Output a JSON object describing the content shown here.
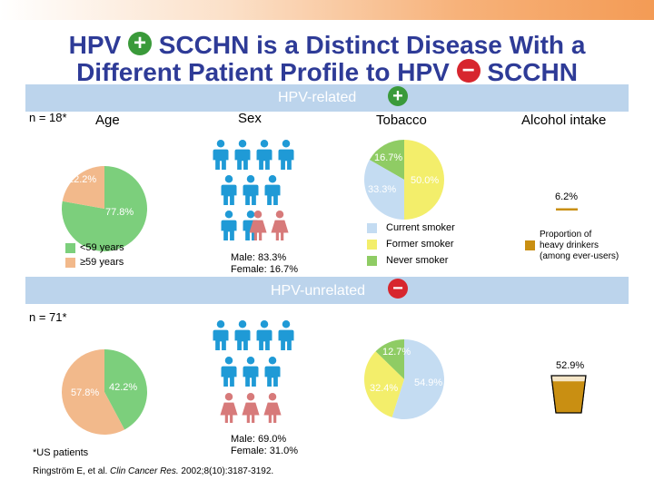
{
  "colors": {
    "title": "#2e3b97",
    "band": "#bcd4ec",
    "male": "#1f9ad6",
    "female": "#d77a7a",
    "under59": "#7ccf7c",
    "over59": "#f2b98b",
    "current_smoker": "#c4dcf2",
    "former_smoker": "#f3ee6b",
    "never_smoker": "#8fcc64",
    "drinkers": "#c98f12",
    "plus": "#3a9a3a",
    "minus": "#d7262e"
  },
  "title": {
    "line1_a": "HPV",
    "line1_b": "SCCHN is a Distinct Disease With a",
    "line2_a": "Different Patient Profile to HPV",
    "line2_b": "SCCHN",
    "plus_symbol": "+",
    "minus_symbol": "−"
  },
  "hpv_related": {
    "band_label": "HPV-related",
    "n": "n = 18*",
    "headers": {
      "age": "Age",
      "sex": "Sex",
      "tobacco": "Tobacco",
      "alcohol": "Alcohol intake"
    },
    "age": {
      "under59": 77.8,
      "over59": 22.2,
      "under59_label": "77.8%",
      "over59_label": "22.2%"
    },
    "sex": {
      "male": 83.3,
      "female": 16.7,
      "text": "Male: 83.3%\nFemale: 16.7%"
    },
    "tobacco": {
      "current": 33.3,
      "former": 50.0,
      "never": 16.7,
      "current_label": "33.3%",
      "former_label": "50.0%",
      "never_label": "16.7%"
    },
    "alcohol": {
      "heavy": 6.2,
      "label": "6.2%"
    }
  },
  "hpv_unrelated": {
    "band_label": "HPV-unrelated",
    "n": "n = 71*",
    "age": {
      "under59": 42.2,
      "over59": 57.8,
      "under59_label": "42.2%",
      "over59_label": "57.8%"
    },
    "sex": {
      "male": 69.0,
      "female": 31.0,
      "text": "Male: 69.0%\nFemale: 31.0%"
    },
    "tobacco": {
      "current": 54.9,
      "former": 32.4,
      "never": 12.7,
      "current_label": "54.9%",
      "former_label": "32.4%",
      "never_label": "12.7%"
    },
    "alcohol": {
      "heavy": 52.9,
      "label": "52.9%"
    }
  },
  "legends": {
    "age": {
      "under59": "<59 years",
      "over59": "≥59 years"
    },
    "tobacco": {
      "current": "Current smoker",
      "former": "Former smoker",
      "never": "Never smoker"
    },
    "alcohol": "Proportion of\nheavy drinkers\n(among ever-users)"
  },
  "footnote": "*US patients",
  "citation": {
    "authors": "Ringström E, et al.",
    "journal": "Clin Cancer Res.",
    "details": "2002;8(10):3187-3192."
  }
}
